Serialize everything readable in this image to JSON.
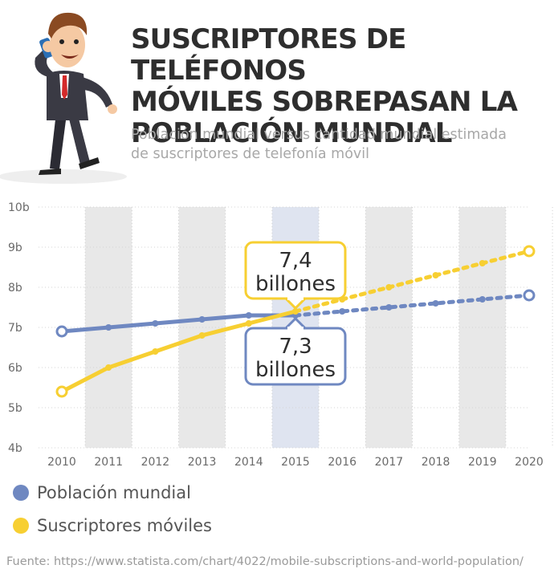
{
  "title": "SUSCRIPTORES DE TELÉFONOS\nMÓVILES SOBREPASAN LA\nPOBLACIÓN MUNDIAL",
  "subtitle": "Población mundial versus cantidad mundial estimada\nde suscriptores de telefonía móvil",
  "source": "Fuente: https://www.statista.com/chart/4022/mobile-subscriptions-and-world-population/",
  "colors": {
    "population": "#6f88c1",
    "subscribers": "#f7cf32",
    "shading": "#e8e8e8",
    "highlight": "#dfe4f0"
  },
  "mascot_icon": "businessman-on-phone-icon",
  "chart_data": {
    "type": "line",
    "x": [
      2010,
      2011,
      2012,
      2013,
      2014,
      2015,
      2016,
      2017,
      2018,
      2019,
      2020
    ],
    "x_tick_labels": [
      "2010",
      "2011",
      "2012",
      "2013",
      "2014",
      "2015",
      "2016",
      "2017",
      "2018",
      "2019",
      "2020"
    ],
    "y_tick_labels": [
      "10b",
      "9b",
      "8b",
      "7b",
      "6b",
      "5b",
      "4b"
    ],
    "ylim": [
      4,
      10
    ],
    "y_ticks": [
      10,
      9,
      8,
      7,
      6,
      5,
      4
    ],
    "projection_start": 2015,
    "highlight_year": 2015,
    "shaded_years": [
      2011,
      2013,
      2015,
      2017,
      2019
    ],
    "grid": "vertical-dotted",
    "legend_position": "bottom-left",
    "series": [
      {
        "key": "population",
        "name": "Población mundial",
        "color": "#6f88c1",
        "values": [
          6.9,
          7.0,
          7.1,
          7.2,
          7.3,
          7.3,
          7.4,
          7.5,
          7.6,
          7.7,
          7.8
        ]
      },
      {
        "key": "subscribers",
        "name": "Suscriptores móviles",
        "color": "#f7cf32",
        "values": [
          5.4,
          6.0,
          6.4,
          6.8,
          7.1,
          7.4,
          7.7,
          8.0,
          8.3,
          8.6,
          8.9
        ]
      }
    ],
    "annotations": [
      {
        "series": "subscribers",
        "year": 2015,
        "value_text": "7,4",
        "unit_text": "billones",
        "position": "above",
        "color": "#f7cf32"
      },
      {
        "series": "population",
        "year": 2015,
        "value_text": "7,3",
        "unit_text": "billones",
        "position": "below",
        "color": "#6f88c1"
      }
    ]
  }
}
